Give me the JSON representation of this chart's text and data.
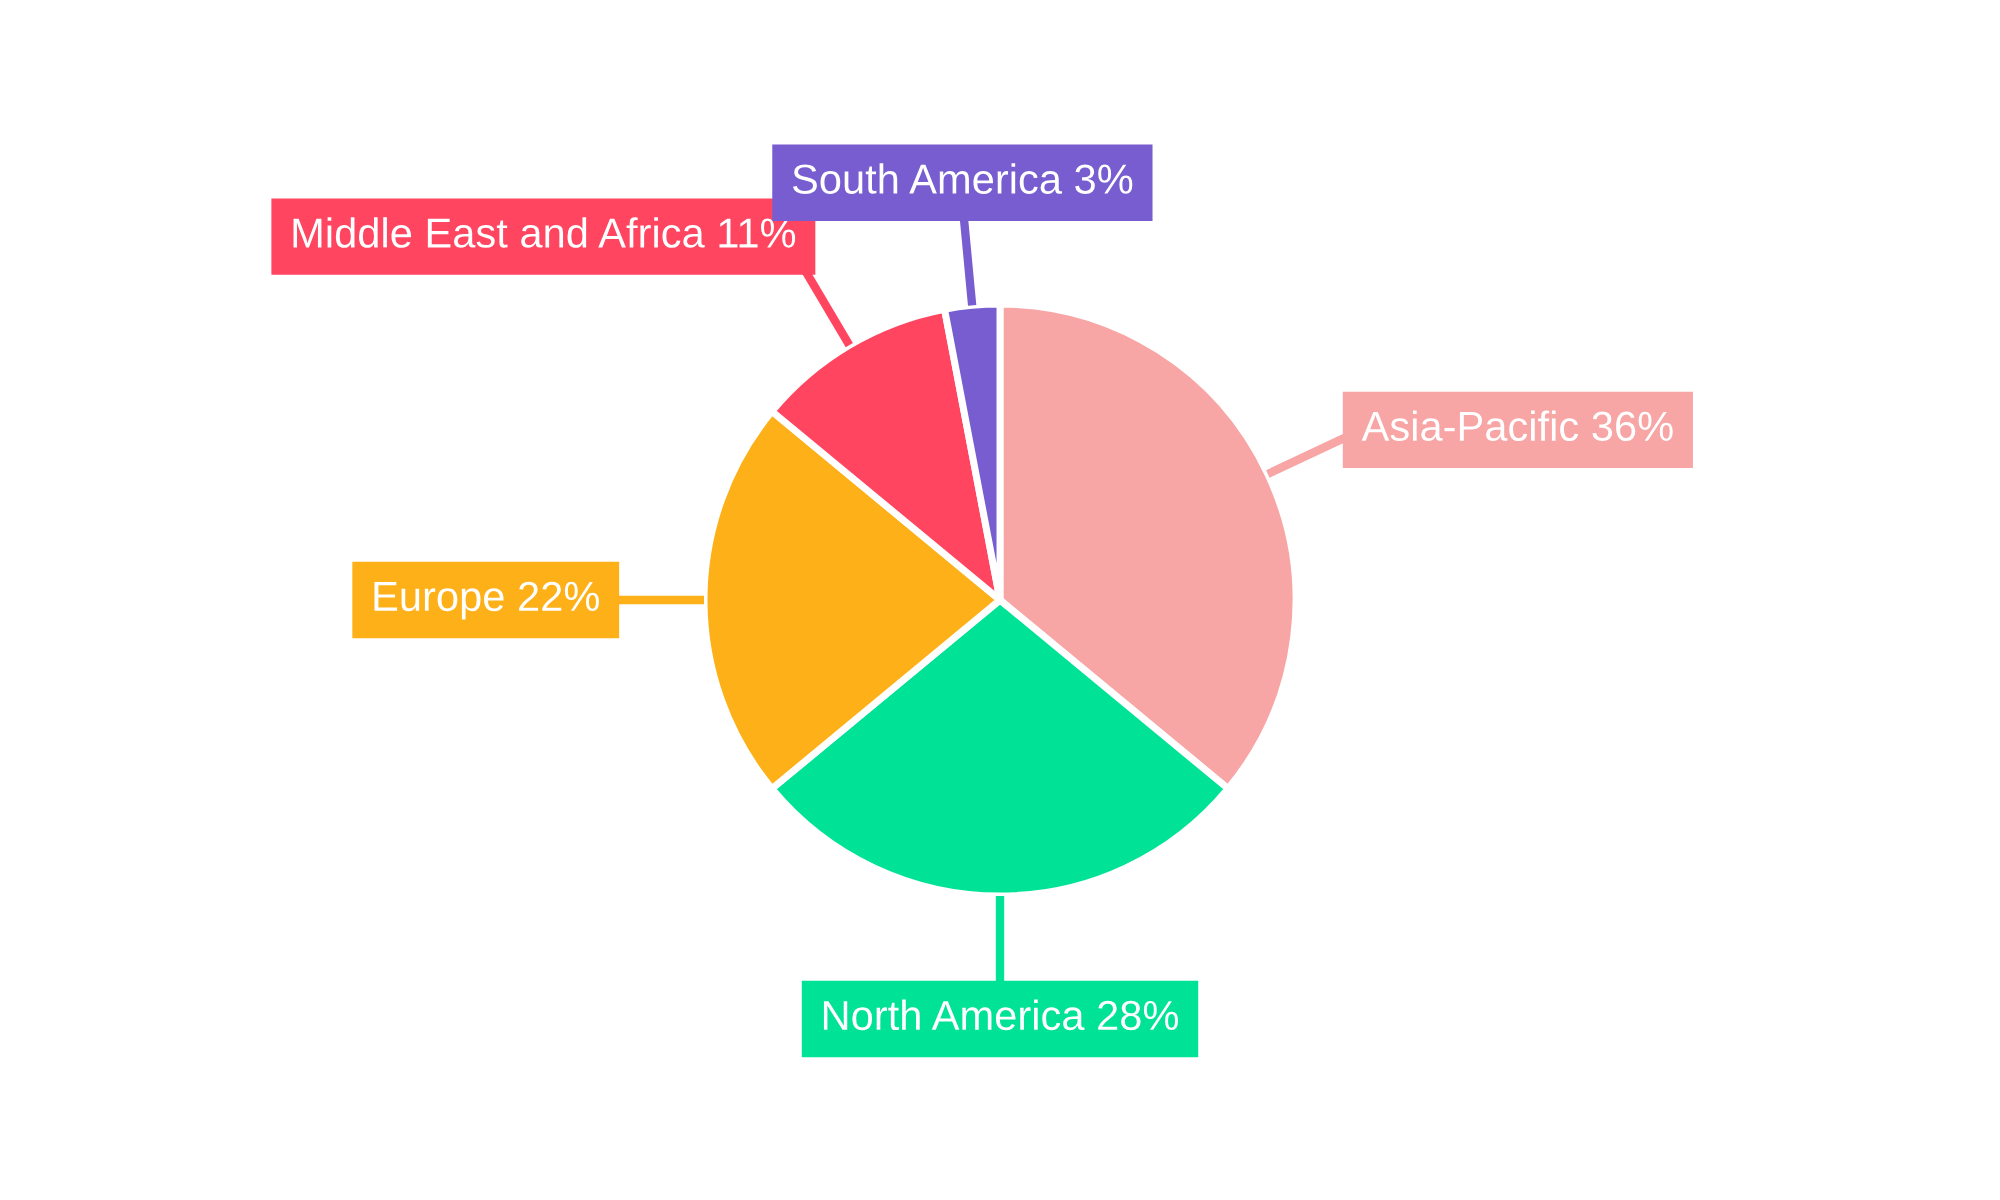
{
  "chart_data": {
    "type": "pie",
    "categories": [
      "Asia-Pacific",
      "North America",
      "Europe",
      "Middle East and Africa",
      "South America"
    ],
    "values": [
      36,
      28,
      22,
      11,
      3
    ],
    "value_labels": [
      "36%",
      "28%",
      "22%",
      "11%",
      "3%"
    ],
    "colors": [
      "#f8a5a5",
      "#00e396",
      "#feb019",
      "#ff4560",
      "#775dd0"
    ],
    "legend": false
  }
}
